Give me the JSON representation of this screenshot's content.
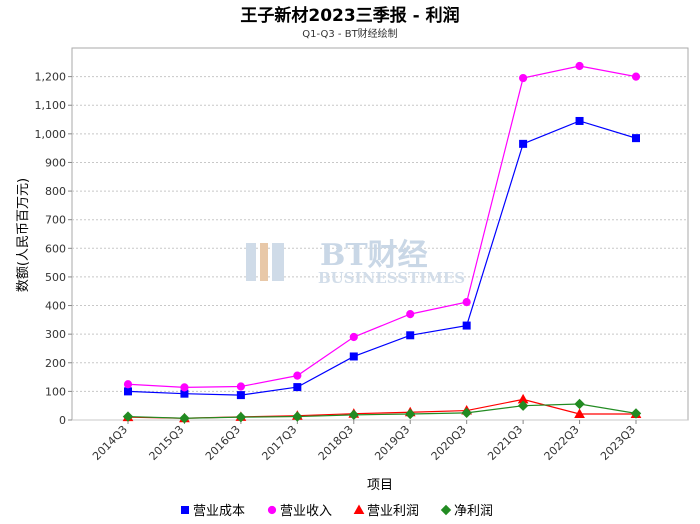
{
  "chart_data": {
    "type": "line",
    "title": "王子新材2023三季报 - 利润",
    "subtitle": "Q1-Q3 - BT财经绘制",
    "xlabel": "项目",
    "ylabel": "数额(人民币百万元)",
    "categories": [
      "2014Q3",
      "2015Q3",
      "2016Q3",
      "2017Q3",
      "2018Q3",
      "2019Q3",
      "2020Q3",
      "2021Q3",
      "2022Q3",
      "2023Q3"
    ],
    "ylim": [
      0,
      1300
    ],
    "yticks": [
      0,
      100,
      200,
      300,
      400,
      500,
      600,
      700,
      800,
      900,
      1000,
      1100,
      1200
    ],
    "ytick_labels": [
      "0",
      "100",
      "200",
      "300",
      "400",
      "500",
      "600",
      "700",
      "800",
      "900",
      "1,000",
      "1,100",
      "1,200"
    ],
    "grid": true,
    "legend_position": "bottom",
    "series": [
      {
        "name": "营业成本",
        "color": "#0000ff",
        "marker": "square",
        "values": [
          100,
          92,
          87,
          115,
          222,
          296,
          330,
          965,
          1045,
          985
        ]
      },
      {
        "name": "营业收入",
        "color": "#ff00ff",
        "marker": "circle",
        "values": [
          125,
          114,
          117,
          155,
          290,
          370,
          412,
          1195,
          1237,
          1200
        ]
      },
      {
        "name": "营业利润",
        "color": "#ff0000",
        "marker": "triangle",
        "values": [
          10,
          6,
          11,
          15,
          22,
          27,
          33,
          72,
          21,
          21
        ]
      },
      {
        "name": "净利润",
        "color": "#228b22",
        "marker": "diamond",
        "values": [
          12,
          6,
          10,
          12,
          18,
          21,
          25,
          50,
          56,
          23
        ]
      }
    ]
  },
  "watermark": {
    "logo_text": "BT财经",
    "sub_text": "BUSINESSTIMES"
  }
}
